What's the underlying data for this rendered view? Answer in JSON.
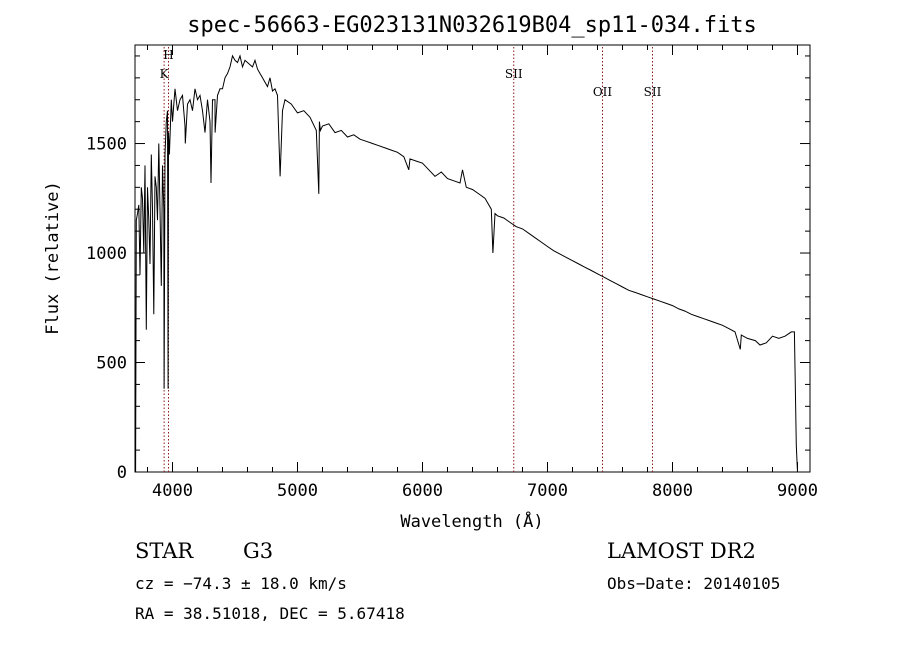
{
  "chart_data": {
    "type": "line",
    "title": "spec-56663-EG023131N032619B04_sp11-034.fits",
    "xlabel": "Wavelength (Å)",
    "ylabel": "Flux (relative)",
    "xlim": [
      3700,
      9100
    ],
    "ylim": [
      0,
      1950
    ],
    "x_ticks": [
      4000,
      5000,
      6000,
      7000,
      8000,
      9000
    ],
    "y_ticks": [
      0,
      500,
      1000,
      1500
    ],
    "x_tick_labels": [
      "4000",
      "5000",
      "6000",
      "7000",
      "8000",
      "9000"
    ],
    "y_tick_labels": [
      "0",
      "500",
      "1000",
      "1500"
    ],
    "grid": false,
    "series": [
      {
        "x": [
          3705,
          3710,
          3720,
          3730,
          3740,
          3750,
          3760,
          3770,
          3780,
          3790,
          3800,
          3810,
          3820,
          3830,
          3840,
          3850,
          3860,
          3870,
          3880,
          3890,
          3900,
          3910,
          3920,
          3930,
          3933,
          3940,
          3950,
          3960,
          3965,
          3968,
          3975,
          3990,
          4000,
          4020,
          4040,
          4060,
          4080,
          4100,
          4102,
          4120,
          4140,
          4160,
          4180,
          4200,
          4220,
          4240,
          4260,
          4280,
          4300,
          4308,
          4320,
          4340,
          4341,
          4360,
          4380,
          4400,
          4420,
          4440,
          4460,
          4480,
          4500,
          4520,
          4540,
          4560,
          4580,
          4600,
          4620,
          4640,
          4660,
          4680,
          4700,
          4720,
          4740,
          4760,
          4780,
          4800,
          4820,
          4840,
          4861,
          4880,
          4900,
          4950,
          5000,
          5050,
          5100,
          5150,
          5170,
          5175,
          5183,
          5200,
          5250,
          5300,
          5350,
          5400,
          5450,
          5500,
          5550,
          5600,
          5650,
          5700,
          5750,
          5800,
          5850,
          5890,
          5900,
          5950,
          6000,
          6050,
          6100,
          6150,
          6200,
          6250,
          6300,
          6320,
          6350,
          6400,
          6450,
          6500,
          6550,
          6563,
          6580,
          6600,
          6650,
          6700,
          6750,
          6800,
          6850,
          6900,
          6950,
          7000,
          7050,
          7100,
          7150,
          7200,
          7250,
          7300,
          7350,
          7400,
          7450,
          7500,
          7550,
          7600,
          7650,
          7700,
          7750,
          7800,
          7850,
          7900,
          7950,
          8000,
          8050,
          8100,
          8150,
          8200,
          8250,
          8300,
          8350,
          8400,
          8450,
          8500,
          8542,
          8550,
          8600,
          8662,
          8700,
          8750,
          8800,
          8850,
          8900,
          8950,
          8975,
          8990,
          9000
        ],
        "y": [
          0,
          1150,
          1180,
          1220,
          900,
          1300,
          1250,
          1000,
          1400,
          650,
          1300,
          1150,
          950,
          1450,
          1200,
          720,
          1350,
          1300,
          1150,
          1500,
          1200,
          850,
          1400,
          1200,
          380,
          1450,
          1600,
          1650,
          380,
          1550,
          1450,
          1700,
          1600,
          1750,
          1650,
          1700,
          1720,
          1580,
          1500,
          1680,
          1700,
          1650,
          1750,
          1700,
          1720,
          1650,
          1550,
          1700,
          1600,
          1320,
          1700,
          1700,
          1550,
          1720,
          1750,
          1750,
          1800,
          1820,
          1850,
          1900,
          1880,
          1870,
          1900,
          1850,
          1880,
          1870,
          1860,
          1850,
          1880,
          1840,
          1820,
          1800,
          1780,
          1760,
          1800,
          1740,
          1750,
          1720,
          1350,
          1650,
          1700,
          1680,
          1640,
          1650,
          1620,
          1560,
          1270,
          1600,
          1560,
          1580,
          1590,
          1550,
          1560,
          1530,
          1540,
          1520,
          1510,
          1500,
          1490,
          1480,
          1470,
          1460,
          1440,
          1380,
          1430,
          1420,
          1410,
          1380,
          1350,
          1370,
          1340,
          1330,
          1320,
          1380,
          1300,
          1290,
          1270,
          1250,
          1200,
          1000,
          1180,
          1170,
          1160,
          1140,
          1120,
          1110,
          1090,
          1070,
          1050,
          1030,
          1010,
          995,
          980,
          965,
          950,
          935,
          920,
          905,
          890,
          875,
          860,
          845,
          830,
          820,
          810,
          800,
          790,
          780,
          770,
          760,
          745,
          735,
          720,
          710,
          700,
          690,
          680,
          670,
          655,
          640,
          560,
          625,
          610,
          600,
          580,
          590,
          620,
          610,
          620,
          640,
          640,
          120,
          0
        ]
      }
    ],
    "line_markers": [
      {
        "label": "H",
        "x": 3968
      },
      {
        "label": "K",
        "x": 3933
      },
      {
        "label": "SII",
        "x": 6730
      },
      {
        "label": "OII",
        "x": 7440
      },
      {
        "label": "SII",
        "x": 7840
      }
    ]
  },
  "info": {
    "object_class": "STAR",
    "subclass": "G3",
    "survey": "LAMOST DR2",
    "cz": "cz = −74.3 ± 18.0 km/s",
    "obs_date": "Obs−Date: 20140105",
    "coords": "RA =  38.51018, DEC =   5.67418"
  },
  "colors": {
    "line": "#000000",
    "marker": "#8b1a1a"
  }
}
